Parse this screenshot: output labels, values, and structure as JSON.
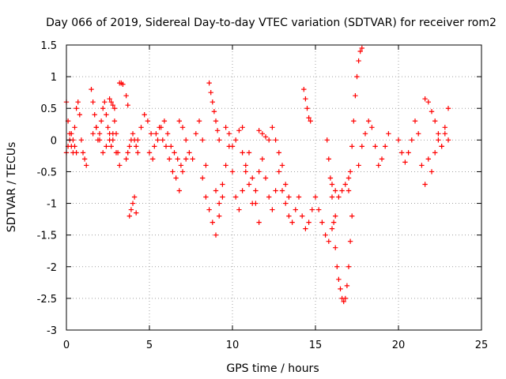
{
  "chart_data": {
    "type": "scatter",
    "title": "Day 066 of 2019, Sidereal Day-to-day VTEC variation (SDTVAR) for receiver rom2",
    "xlabel": "GPS time / hours",
    "ylabel": "SDTVAR / TECUs",
    "xlim": [
      0,
      25
    ],
    "ylim": [
      -3,
      1.5
    ],
    "x_ticks": [
      0,
      5,
      10,
      15,
      20,
      25
    ],
    "x_tick_labels": [
      "0",
      "5",
      "10",
      "15",
      "20",
      "25"
    ],
    "y_ticks": [
      -3,
      -2.5,
      -2,
      -1.5,
      -1,
      -0.5,
      0,
      0.5,
      1,
      1.5
    ],
    "y_tick_labels": [
      "-3",
      "-2.5",
      "-2",
      "-1.5",
      "-1",
      "-0.5",
      "0",
      "0.5",
      "1",
      "1.5"
    ],
    "grid": true,
    "marker": "+",
    "color": "#ff0000",
    "series": [
      {
        "name": "SDTVAR",
        "segments": [
          {
            "x": [
              0.0,
              0.1,
              0.2,
              0.3,
              0.4,
              0.5,
              0.6,
              0.7,
              0.8,
              0.9,
              1.0,
              1.1,
              1.2
            ],
            "y": [
              0.6,
              0.3,
              0.1,
              -0.1,
              -0.2,
              0.2,
              0.5,
              0.6,
              0.4,
              0.0,
              -0.2,
              -0.3,
              -0.4
            ]
          },
          {
            "x": [
              0.0,
              0.1,
              0.2,
              0.3,
              0.4,
              0.5,
              0.6
            ],
            "y": [
              -0.2,
              -0.1,
              0.0,
              0.1,
              0.0,
              -0.1,
              -0.2
            ]
          },
          {
            "x": [
              1.5,
              1.6,
              1.7,
              1.8,
              1.9,
              2.0,
              2.1,
              2.2,
              2.3,
              2.4,
              2.5,
              2.6,
              2.7,
              2.8,
              2.9,
              3.0,
              3.1,
              3.2
            ],
            "y": [
              0.8,
              0.6,
              0.4,
              0.2,
              0.0,
              0.1,
              0.3,
              0.5,
              0.6,
              0.4,
              0.2,
              0.0,
              -0.1,
              0.1,
              0.3,
              0.1,
              -0.2,
              -0.4
            ]
          },
          {
            "x": [
              1.6,
              1.8,
              2.0,
              2.2,
              2.4,
              2.6,
              2.8,
              3.0
            ],
            "y": [
              0.1,
              0.2,
              0.0,
              -0.2,
              -0.1,
              0.1,
              0.0,
              -0.2
            ]
          },
          {
            "x": [
              2.6,
              2.7,
              2.8,
              2.9
            ],
            "y": [
              0.65,
              0.6,
              0.55,
              0.5
            ]
          },
          {
            "x": [
              3.2,
              3.3,
              3.4,
              3.6,
              3.7
            ],
            "y": [
              0.9,
              0.9,
              0.88,
              0.7,
              0.55
            ]
          },
          {
            "x": [
              3.8,
              3.9,
              4.0,
              4.1,
              4.2
            ],
            "y": [
              -1.2,
              -1.1,
              -1.0,
              -0.9,
              -1.15
            ]
          },
          {
            "x": [
              3.6,
              3.7,
              3.8,
              3.9,
              4.0,
              4.1,
              4.2,
              4.3
            ],
            "y": [
              -0.3,
              -0.2,
              -0.1,
              0.0,
              0.1,
              0.0,
              -0.1,
              -0.2
            ]
          },
          {
            "x": [
              4.3,
              4.5,
              4.7,
              4.9,
              5.1,
              5.3,
              5.5,
              5.7,
              5.9,
              6.1,
              6.3,
              6.5,
              6.7,
              6.9
            ],
            "y": [
              0.0,
              0.2,
              0.4,
              0.3,
              0.1,
              -0.1,
              0.0,
              0.2,
              0.3,
              0.1,
              -0.1,
              -0.2,
              -0.3,
              -0.4
            ]
          },
          {
            "x": [
              5.0,
              5.2,
              5.4,
              5.6,
              5.8,
              6.0,
              6.2,
              6.4,
              6.6,
              6.8,
              7.0,
              7.2
            ],
            "y": [
              -0.2,
              -0.3,
              0.1,
              0.2,
              0.0,
              -0.1,
              -0.3,
              -0.5,
              -0.6,
              -0.8,
              -0.5,
              -0.3
            ]
          },
          {
            "x": [
              6.8,
              7.0,
              7.2,
              7.4,
              7.6,
              7.8,
              8.0,
              8.2,
              8.4
            ],
            "y": [
              0.3,
              0.2,
              0.0,
              -0.2,
              -0.3,
              0.1,
              0.3,
              0.0,
              -0.4
            ]
          },
          {
            "x": [
              8.2,
              8.4,
              8.6,
              8.8,
              9.0,
              9.2,
              9.4
            ],
            "y": [
              -0.6,
              -0.9,
              -1.1,
              -1.3,
              -1.5,
              -1.2,
              -0.9
            ]
          },
          {
            "x": [
              8.6,
              8.7,
              8.8,
              8.9,
              9.0,
              9.1,
              9.2
            ],
            "y": [
              0.9,
              0.75,
              0.6,
              0.45,
              0.3,
              0.15,
              0.0
            ]
          },
          {
            "x": [
              9.0,
              9.2,
              9.4,
              9.6,
              9.8,
              10.0,
              10.2,
              10.4,
              10.6,
              10.8,
              11.0,
              11.2,
              11.4,
              11.6
            ],
            "y": [
              -0.8,
              -1.0,
              -0.7,
              -0.4,
              -0.1,
              -0.5,
              -0.9,
              -1.1,
              -0.8,
              -0.5,
              -0.2,
              -0.6,
              -1.0,
              -1.3
            ]
          },
          {
            "x": [
              9.6,
              9.8,
              10.0,
              10.2,
              10.4,
              10.6
            ],
            "y": [
              0.2,
              0.1,
              -0.1,
              0.0,
              0.15,
              0.2
            ]
          },
          {
            "x": [
              10.6,
              10.8,
              11.0,
              11.2,
              11.4,
              11.6,
              11.8,
              12.0,
              12.2,
              12.4,
              12.6,
              12.8
            ],
            "y": [
              -0.2,
              -0.4,
              -0.7,
              -1.0,
              -0.8,
              -0.5,
              -0.3,
              -0.6,
              -0.9,
              -1.1,
              -0.8,
              -0.5
            ]
          },
          {
            "x": [
              11.6,
              11.8,
              12.0,
              12.2
            ],
            "y": [
              0.15,
              0.1,
              0.05,
              0.0
            ]
          },
          {
            "x": [
              12.4,
              12.6,
              12.8,
              13.0,
              13.2,
              13.4
            ],
            "y": [
              0.2,
              0.0,
              -0.2,
              -0.4,
              -0.7,
              -0.9
            ]
          },
          {
            "x": [
              13.0,
              13.2,
              13.4,
              13.6,
              13.8,
              14.0,
              14.2,
              14.4,
              14.6,
              14.8
            ],
            "y": [
              -0.8,
              -1.0,
              -1.2,
              -1.3,
              -1.1,
              -0.9,
              -1.2,
              -1.4,
              -1.3,
              -1.1
            ]
          },
          {
            "x": [
              14.3,
              14.4,
              14.5,
              14.6,
              14.7
            ],
            "y": [
              0.8,
              0.65,
              0.5,
              0.35,
              0.3
            ]
          },
          {
            "x": [
              15.0,
              15.2,
              15.4,
              15.6,
              15.8,
              16.0,
              16.2
            ],
            "y": [
              -0.9,
              -1.1,
              -1.3,
              -1.5,
              -1.6,
              -1.4,
              -1.2
            ]
          },
          {
            "x": [
              15.7,
              15.8,
              15.9,
              16.0,
              16.1,
              16.2,
              16.3,
              16.4,
              16.5,
              16.6,
              16.7,
              16.8,
              16.9,
              17.0,
              17.1,
              17.2
            ],
            "y": [
              0.0,
              -0.3,
              -0.6,
              -0.9,
              -1.3,
              -1.7,
              -2.0,
              -2.2,
              -2.35,
              -2.5,
              -2.55,
              -2.5,
              -2.3,
              -2.0,
              -1.6,
              -1.2
            ]
          },
          {
            "x": [
              16.0,
              16.2,
              16.4,
              16.6,
              16.8,
              17.0
            ],
            "y": [
              -0.7,
              -0.8,
              -0.9,
              -0.8,
              -0.7,
              -0.6
            ]
          },
          {
            "x": [
              17.0,
              17.1,
              17.2,
              17.3,
              17.4,
              17.5,
              17.6,
              17.7,
              17.8
            ],
            "y": [
              -0.8,
              -0.5,
              -0.1,
              0.3,
              0.7,
              1.0,
              1.25,
              1.4,
              1.45
            ]
          },
          {
            "x": [
              17.6,
              17.8,
              18.0,
              18.2,
              18.4,
              18.6,
              18.8,
              19.0,
              19.2,
              19.4
            ],
            "y": [
              -0.4,
              -0.1,
              0.1,
              0.3,
              0.2,
              -0.1,
              -0.4,
              -0.3,
              -0.1,
              0.1
            ]
          },
          {
            "x": [
              20.0,
              20.2,
              20.4,
              20.6,
              20.8,
              21.0,
              21.2,
              21.4,
              21.6
            ],
            "y": [
              0.0,
              -0.2,
              -0.35,
              -0.2,
              0.0,
              0.3,
              0.1,
              -0.4,
              -0.7
            ]
          },
          {
            "x": [
              21.6,
              21.8,
              22.0,
              22.2,
              22.4,
              22.6,
              22.8,
              23.0
            ],
            "y": [
              0.65,
              0.6,
              0.45,
              0.3,
              0.1,
              -0.1,
              0.2,
              0.5
            ]
          },
          {
            "x": [
              21.8,
              22.0,
              22.2,
              22.4,
              22.6,
              22.8,
              23.0
            ],
            "y": [
              -0.3,
              -0.5,
              -0.2,
              0.0,
              -0.1,
              0.1,
              0.0
            ]
          }
        ]
      }
    ]
  }
}
